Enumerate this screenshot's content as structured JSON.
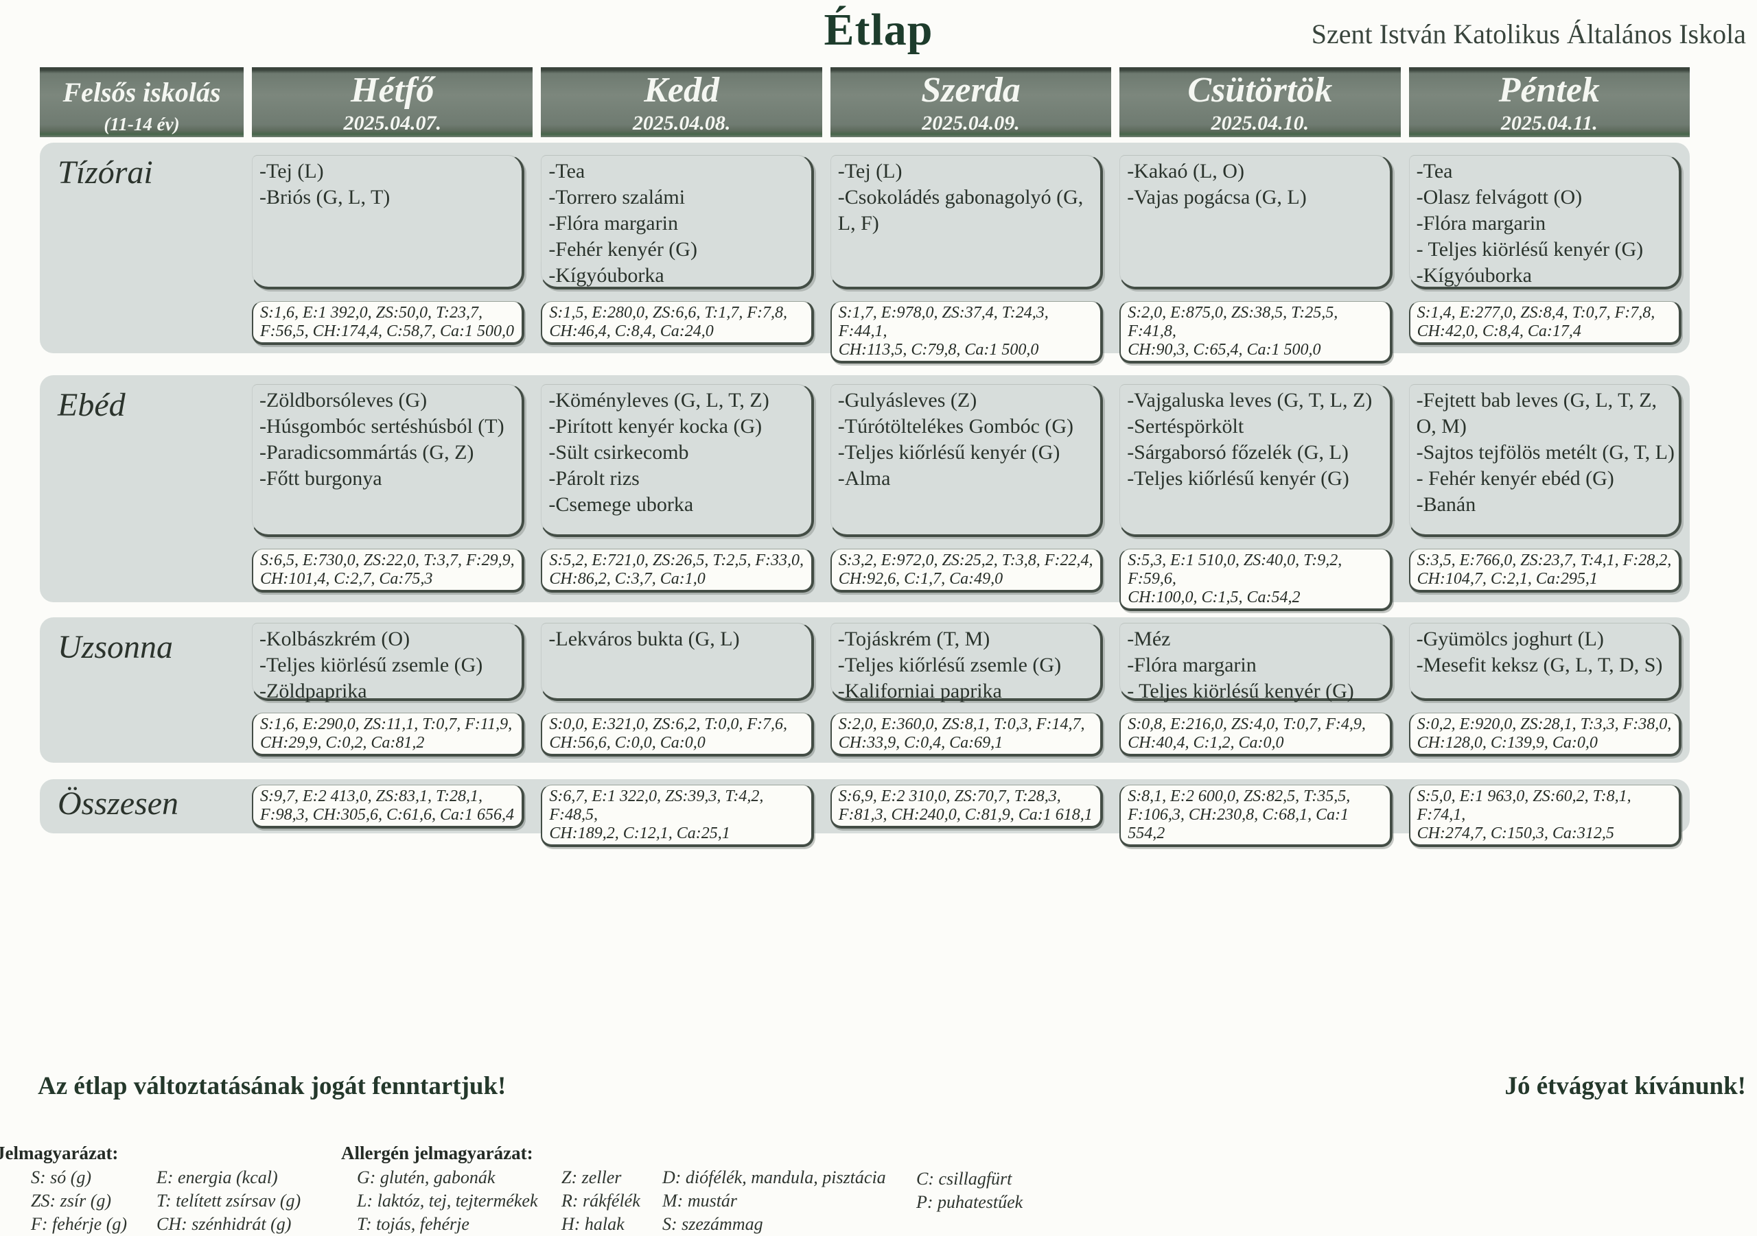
{
  "page": {
    "title": "Étlap",
    "school": "Szent István Katolikus Általános Iskola",
    "notice_left": "Az étlap változtatásának jogát fenntartjuk!",
    "notice_right": "Jó étvágyat kívánunk!"
  },
  "style_colors": {
    "header_bg": "#6f7b71",
    "band_bg": "#d7dddb",
    "title_green": "#1d3c2c",
    "box_border": "#434d45"
  },
  "header": {
    "group": {
      "line1": "Felsős iskolás",
      "line2": "(11-14 év)"
    },
    "days": [
      {
        "name": "Hétfő",
        "date": "2025.04.07."
      },
      {
        "name": "Kedd",
        "date": "2025.04.08."
      },
      {
        "name": "Szerda",
        "date": "2025.04.09."
      },
      {
        "name": "Csütörtök",
        "date": "2025.04.10."
      },
      {
        "name": "Péntek",
        "date": "2025.04.11."
      }
    ]
  },
  "rows": [
    {
      "label": "Tízórai",
      "cells": [
        {
          "items": [
            "-Tej (L)",
            "-Briós (G, L, T)"
          ],
          "nutrition": [
            "S:1,6, E:1 392,0, ZS:50,0, T:23,7,",
            "F:56,5, CH:174,4, C:58,7, Ca:1 500,0"
          ]
        },
        {
          "items": [
            "-Tea",
            "-Torrero szalámi",
            "-Flóra margarin",
            "-Fehér kenyér (G)",
            "-Kígyóuborka"
          ],
          "nutrition": [
            "S:1,5, E:280,0, ZS:6,6, T:1,7, F:7,8,",
            "CH:46,4, C:8,4, Ca:24,0"
          ]
        },
        {
          "items": [
            "-Tej (L)",
            "-Csokoládés gabonagolyó (G, L, F)"
          ],
          "nutrition": [
            "S:1,7, E:978,0, ZS:37,4, T:24,3, F:44,1,",
            "CH:113,5, C:79,8, Ca:1 500,0"
          ]
        },
        {
          "items": [
            "-Kakaó (L, O)",
            "-Vajas pogácsa (G, L)"
          ],
          "nutrition": [
            "S:2,0, E:875,0, ZS:38,5, T:25,5, F:41,8,",
            "CH:90,3, C:65,4, Ca:1 500,0"
          ]
        },
        {
          "items": [
            "-Tea",
            "-Olasz felvágott (O)",
            "-Flóra margarin",
            "- Teljes kiörlésű kenyér (G)",
            "-Kígyóuborka"
          ],
          "nutrition": [
            "S:1,4, E:277,0, ZS:8,4, T:0,7, F:7,8,",
            "CH:42,0, C:8,4, Ca:17,4"
          ]
        }
      ]
    },
    {
      "label": "Ebéd",
      "cells": [
        {
          "items": [
            "-Zöldborsóleves (G)",
            "-Húsgombóc sertéshúsból (T)",
            "-Paradicsommártás (G, Z)",
            "-Főtt burgonya"
          ],
          "nutrition": [
            "S:6,5, E:730,0, ZS:22,0, T:3,7, F:29,9,",
            "CH:101,4, C:2,7, Ca:75,3"
          ]
        },
        {
          "items": [
            "-Köményleves  (G, L, T, Z)",
            "-Pirított kenyér kocka (G)",
            "-Sült csirkecomb",
            "-Párolt rizs",
            "-Csemege uborka"
          ],
          "nutrition": [
            "S:5,2, E:721,0, ZS:26,5, T:2,5, F:33,0,",
            "CH:86,2, C:3,7, Ca:1,0"
          ]
        },
        {
          "items": [
            "-Gulyásleves (Z)",
            "-Túrótöltelékes Gombóc (G)",
            "-Teljes kiőrlésű kenyér (G)",
            "-Alma"
          ],
          "nutrition": [
            "S:3,2, E:972,0, ZS:25,2, T:3,8, F:22,4,",
            "CH:92,6, C:1,7, Ca:49,0"
          ]
        },
        {
          "items": [
            "-Vajgaluska leves (G, T, L, Z)",
            "-Sertéspörkölt",
            "-Sárgaborsó főzelék (G, L)",
            "-Teljes kiőrlésű kenyér (G)"
          ],
          "nutrition": [
            "S:5,3, E:1 510,0, ZS:40,0, T:9,2, F:59,6,",
            "CH:100,0, C:1,5, Ca:54,2"
          ]
        },
        {
          "items": [
            "-Fejtett bab leves (G, L, T, Z, O, M)",
            "-Sajtos tejfölös metélt (G, T, L)",
            "- Fehér kenyér ebéd (G)",
            "-Banán"
          ],
          "nutrition": [
            "S:3,5, E:766,0, ZS:23,7, T:4,1, F:28,2,",
            "CH:104,7, C:2,1, Ca:295,1"
          ]
        }
      ]
    },
    {
      "label": "Uzsonna",
      "cells": [
        {
          "items": [
            "-Kolbászkrém (O)",
            "-Teljes kiörlésű zsemle (G)",
            "-Zöldpaprika"
          ],
          "nutrition": [
            "S:1,6, E:290,0, ZS:11,1, T:0,7, F:11,9,",
            "CH:29,9, C:0,2, Ca:81,2"
          ]
        },
        {
          "items": [
            "-Lekváros bukta (G, L)"
          ],
          "nutrition": [
            "S:0,0, E:321,0, ZS:6,2, T:0,0, F:7,6,",
            "CH:56,6, C:0,0, Ca:0,0"
          ]
        },
        {
          "items": [
            "-Tojáskrém (T, M)",
            "-Teljes kiőrlésű zsemle (G)",
            "-Kaliforniai paprika"
          ],
          "nutrition": [
            "S:2,0, E:360,0, ZS:8,1, T:0,3, F:14,7,",
            "CH:33,9, C:0,4, Ca:69,1"
          ]
        },
        {
          "items": [
            "-Méz",
            "-Flóra margarin",
            "- Teljes kiörlésű kenyér (G)"
          ],
          "nutrition": [
            "S:0,8, E:216,0, ZS:4,0, T:0,7, F:4,9,",
            "CH:40,4, C:1,2, Ca:0,0"
          ]
        },
        {
          "items": [
            "-Gyümölcs joghurt (L)",
            "-Mesefit keksz (G, L, T, D, S)"
          ],
          "nutrition": [
            "S:0,2, E:920,0, ZS:28,1, T:3,3, F:38,0,",
            "CH:128,0, C:139,9, Ca:0,0"
          ]
        }
      ]
    }
  ],
  "totals": {
    "label": "Összesen",
    "values": [
      [
        "S:9,7, E:2 413,0, ZS:83,1, T:28,1,",
        "F:98,3, CH:305,6, C:61,6, Ca:1 656,4"
      ],
      [
        "S:6,7, E:1 322,0, ZS:39,3, T:4,2, F:48,5,",
        "CH:189,2, C:12,1, Ca:25,1"
      ],
      [
        "S:6,9, E:2 310,0, ZS:70,7, T:28,3,",
        "F:81,3, CH:240,0, C:81,9, Ca:1 618,1"
      ],
      [
        "S:8,1, E:2 600,0, ZS:82,5, T:35,5,",
        "F:106,3, CH:230,8, C:68,1, Ca:1 554,2"
      ],
      [
        "S:5,0, E:1 963,0, ZS:60,2, T:8,1, F:74,1,",
        "CH:274,7, C:150,3, Ca:312,5"
      ]
    ]
  },
  "legend": {
    "title": "Jelmagyarázat:",
    "allergen_title": "Allergén jelmagyarázat:",
    "nutrient_col1": [
      "S: só (g)",
      "ZS: zsír (g)",
      "F: fehérje (g)"
    ],
    "nutrient_col2": [
      "E: energia (kcal)",
      "T: telített zsírsav (g)",
      "CH: szénhidrát (g)"
    ],
    "allergen_col1": [
      "G: glutén, gabonák",
      "L: laktóz, tej, tejtermékek",
      "T: tojás, fehérje"
    ],
    "allergen_col2": [
      "Z: zeller",
      "R: rákfélék",
      "H: halak"
    ],
    "allergen_col3": [
      "D: diófélék, mandula, pisztácia",
      "M: mustár",
      "S: szezámmag"
    ],
    "allergen_col4": [
      "C: csillagfürt",
      "P: puhatestűek"
    ]
  }
}
